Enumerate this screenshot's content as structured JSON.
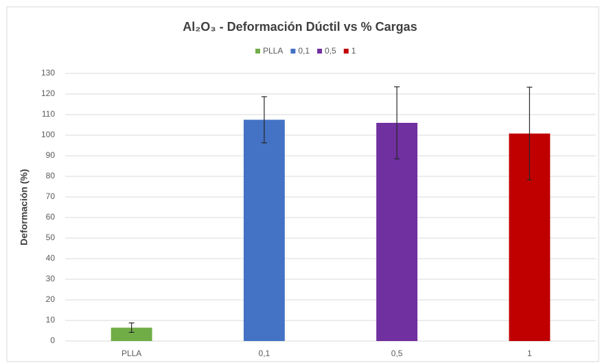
{
  "chart_data": {
    "type": "bar",
    "title": "Al₂O₃ - Deformación Dúctil vs % Cargas",
    "y_label": "Deformación (%)",
    "categories": [
      "PLLA",
      "0,1",
      "0,5",
      "1"
    ],
    "values": [
      6.5,
      107.5,
      106,
      100.8
    ],
    "errors": [
      2.3,
      11.2,
      17.5,
      22.5
    ],
    "colors": [
      "#70ad47",
      "#4472c4",
      "#7030a0",
      "#c00000"
    ],
    "ylim": [
      0,
      130
    ],
    "yticks": [
      0,
      10,
      20,
      30,
      40,
      50,
      60,
      70,
      80,
      90,
      100,
      110,
      120,
      130
    ],
    "grid": true
  }
}
